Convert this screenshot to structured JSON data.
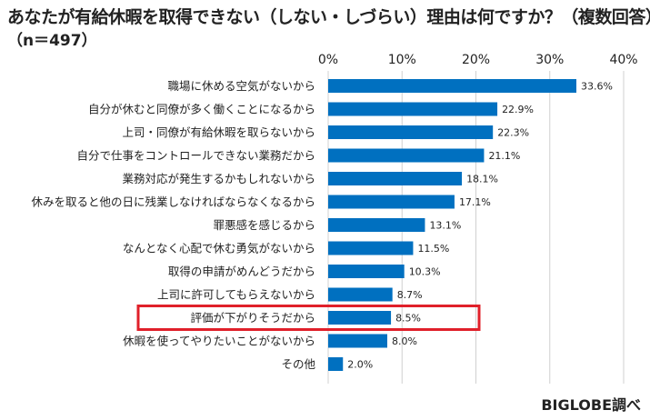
{
  "title": "あなたが有給休暇を取得できない（しない・しづらい）理由は何ですか？（複数回答）",
  "subtitle": "（n＝497）",
  "credit": "BIGLOBE調べ",
  "colors": {
    "bar": "#0070c0",
    "highlight_box": "#e0202a",
    "grid": "#d0d0d0"
  },
  "chart_data": {
    "type": "bar",
    "orientation": "horizontal",
    "categories": [
      "職場に休める空気がないから",
      "自分が休むと同僚が多く働くことになるから",
      "上司・同僚が有給休暇を取らないから",
      "自分で仕事をコントロールできない業務だから",
      "業務対応が発生するかもしれないから",
      "休みを取ると他の日に残業しなければならなくなるから",
      "罪悪感を感じるから",
      "なんとなく心配で休む勇気がないから",
      "取得の申請がめんどうだから",
      "上司に許可してもらえないから",
      "評価が下がりそうだから",
      "休暇を使ってやりたいことがないから",
      "その他"
    ],
    "values": [
      33.6,
      22.9,
      22.3,
      21.1,
      18.1,
      17.1,
      13.1,
      11.5,
      10.3,
      8.7,
      8.5,
      8.0,
      2.0
    ],
    "value_labels": [
      "33.6%",
      "22.9%",
      "22.3%",
      "21.1%",
      "18.1%",
      "17.1%",
      "13.1%",
      "11.5%",
      "10.3%",
      "8.7%",
      "8.5%",
      "8.0%",
      "2.0%"
    ],
    "xlim": [
      0,
      40
    ],
    "xticks": [
      0,
      10,
      20,
      30,
      40
    ],
    "xtick_labels": [
      "0%",
      "10%",
      "20%",
      "30%",
      "40%"
    ],
    "tick_position": "top",
    "grid": true,
    "highlighted_category": "評価が下がりそうだから"
  }
}
